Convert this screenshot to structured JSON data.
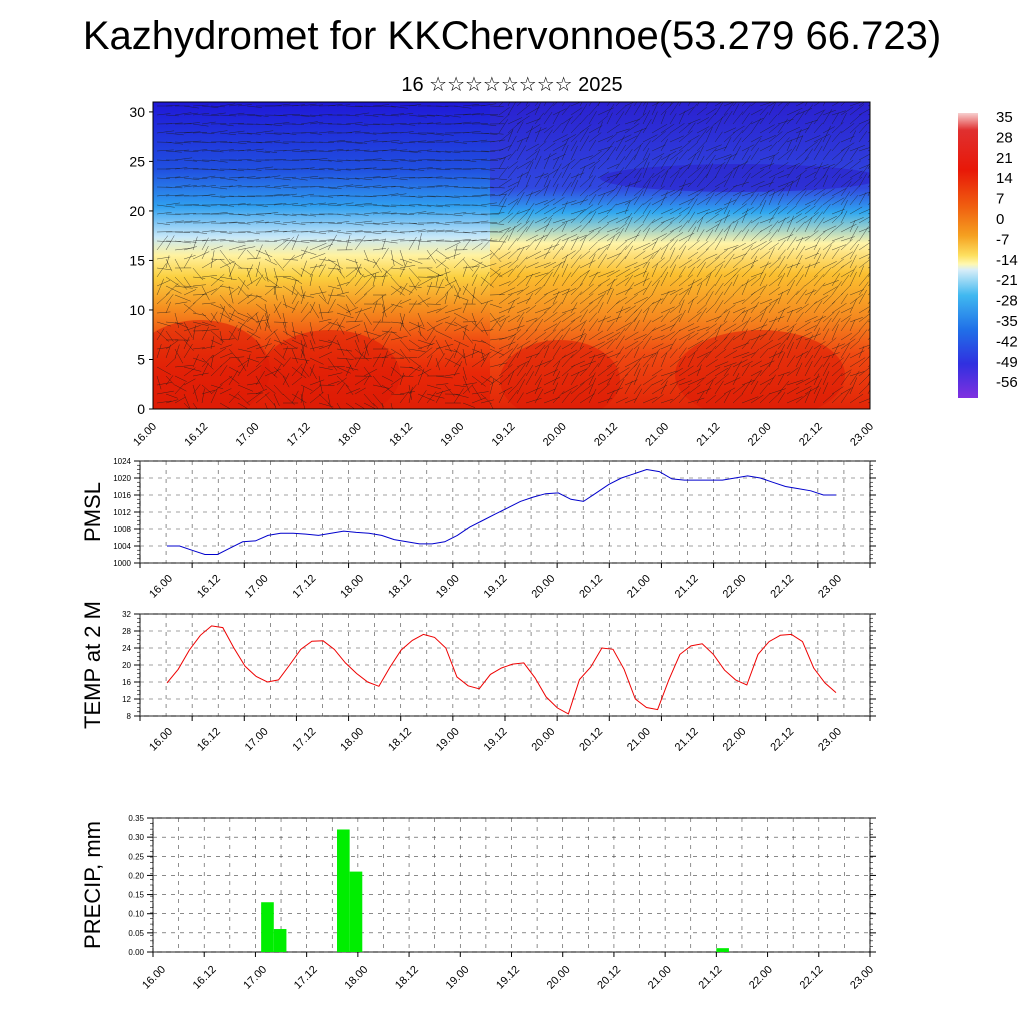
{
  "header": {
    "title": "Kazhydromet for KKChervonnoe(53.279 66.723)",
    "subtitle": "16 ☆☆☆☆☆☆☆☆ 2025"
  },
  "x_ticks": [
    "16.00",
    "16.12",
    "17.00",
    "17.12",
    "18.00",
    "18.12",
    "19.00",
    "19.12",
    "20.00",
    "20.12",
    "21.00",
    "21.12",
    "22.00",
    "22.12",
    "23.00"
  ],
  "colors": {
    "pmsl_line": "#0000cc",
    "temp_line": "#ee0000",
    "precip_bar": "#00ee00",
    "gridline": "#444444"
  },
  "chart_data": [
    {
      "type": "heatmap",
      "title": "",
      "xlabel": "",
      "ylabel": "",
      "ylim": [
        0,
        31
      ],
      "y_ticks": [
        0,
        5,
        10,
        15,
        20,
        25,
        30
      ],
      "overlay": "wind barbs",
      "colorbar": {
        "labels": [
          "35",
          "28",
          "21",
          "14",
          "7",
          "0",
          "-7",
          "-14",
          "-21",
          "-28",
          "-35",
          "-42",
          "-49",
          "-56"
        ],
        "range": [
          -60,
          38
        ]
      }
    },
    {
      "type": "line",
      "ylabel": "PMSL",
      "ylim": [
        1000,
        1024
      ],
      "y_ticks": [
        1000,
        1004,
        1008,
        1012,
        1016,
        1020,
        1024
      ],
      "x_step_hours": 3,
      "values": [
        1004,
        1004,
        1003,
        1002,
        1002,
        1003.5,
        1005,
        1005.2,
        1006.5,
        1007,
        1007,
        1006.8,
        1006.5,
        1007,
        1007.5,
        1007.2,
        1007,
        1006.5,
        1005.5,
        1005,
        1004.5,
        1004.5,
        1005,
        1006.5,
        1008.5,
        1010,
        1011.5,
        1013,
        1014.5,
        1015.5,
        1016.3,
        1016.5,
        1015,
        1014.5,
        1016.5,
        1018.5,
        1020,
        1021,
        1022,
        1021.5,
        1019.8,
        1019.5,
        1019.5,
        1019.5,
        1019.5,
        1020,
        1020.5,
        1020,
        1019,
        1018,
        1017.5,
        1017,
        1016,
        1016
      ]
    },
    {
      "type": "line",
      "ylabel": "TEMP at 2 M",
      "ylim": [
        8,
        32
      ],
      "y_ticks": [
        8,
        12,
        16,
        20,
        24,
        28,
        32
      ],
      "x_step_hours": 3,
      "values": [
        15.8,
        19,
        23.5,
        27,
        29.2,
        28.8,
        24,
        19.7,
        17.3,
        16,
        16.5,
        20,
        23.7,
        25.6,
        25.7,
        23.7,
        20.5,
        18,
        16,
        15,
        19.5,
        23.5,
        25.8,
        27.2,
        26.5,
        24,
        17.2,
        15.1,
        14.4,
        17.8,
        19.3,
        20.2,
        20.5,
        17,
        12.5,
        9.9,
        8.5,
        16.6,
        19.5,
        24,
        23.7,
        19,
        12,
        10,
        9.5,
        16.5,
        22.5,
        24.5,
        25,
        22.5,
        18.8,
        16.5,
        15.3,
        22.5,
        25.5,
        27,
        27.2,
        25.5,
        19.3,
        15.8,
        13.5
      ]
    },
    {
      "type": "bar",
      "ylabel": "PRECIP, mm",
      "ylim": [
        0,
        0.35
      ],
      "y_ticks": [
        "0.00",
        "0.05",
        "0.10",
        "0.15",
        "0.20",
        "0.25",
        "0.30",
        "0.35"
      ],
      "x_step_hours": 3,
      "values": [
        0,
        0,
        0,
        0,
        0,
        0,
        0,
        0,
        0.13,
        0.06,
        0,
        0,
        0,
        0,
        0.32,
        0.21,
        0,
        0,
        0,
        0,
        0,
        0,
        0,
        0,
        0,
        0,
        0,
        0,
        0,
        0,
        0,
        0,
        0,
        0,
        0,
        0,
        0,
        0,
        0,
        0,
        0,
        0,
        0,
        0,
        0.01,
        0,
        0,
        0,
        0,
        0,
        0,
        0,
        0,
        0,
        0,
        0
      ]
    }
  ]
}
